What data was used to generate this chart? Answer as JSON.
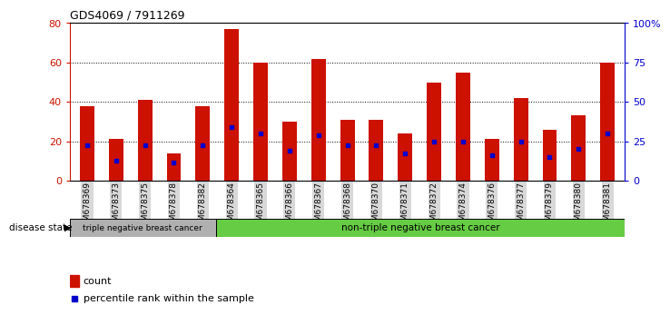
{
  "title": "GDS4069 / 7911269",
  "samples": [
    "GSM678369",
    "GSM678373",
    "GSM678375",
    "GSM678378",
    "GSM678382",
    "GSM678364",
    "GSM678365",
    "GSM678366",
    "GSM678367",
    "GSM678368",
    "GSM678370",
    "GSM678371",
    "GSM678372",
    "GSM678374",
    "GSM678376",
    "GSM678377",
    "GSM678379",
    "GSM678380",
    "GSM678381"
  ],
  "counts": [
    38,
    21,
    41,
    14,
    38,
    77,
    60,
    30,
    62,
    31,
    31,
    24,
    50,
    55,
    21,
    42,
    26,
    33,
    60
  ],
  "percentile_ranks": [
    18,
    10,
    18,
    9,
    18,
    27,
    24,
    15,
    23,
    18,
    18,
    14,
    20,
    20,
    13,
    20,
    12,
    16,
    24
  ],
  "group_labels": [
    "triple negative breast cancer",
    "non-triple negative breast cancer"
  ],
  "group_counts": [
    5,
    14
  ],
  "bar_color": "#cc1100",
  "blue_color": "#0000cc",
  "ylim_left": [
    0,
    80
  ],
  "ylim_right": [
    0,
    100
  ],
  "yticks_left": [
    0,
    20,
    40,
    60,
    80
  ],
  "yticks_right": [
    0,
    25,
    50,
    75,
    100
  ],
  "ytick_labels_right": [
    "0",
    "25",
    "50",
    "75",
    "100%"
  ],
  "bar_width": 0.5,
  "group1_color": "#b0b0b0",
  "group2_color": "#66cc44",
  "tick_bg_color": "#d8d8d8"
}
